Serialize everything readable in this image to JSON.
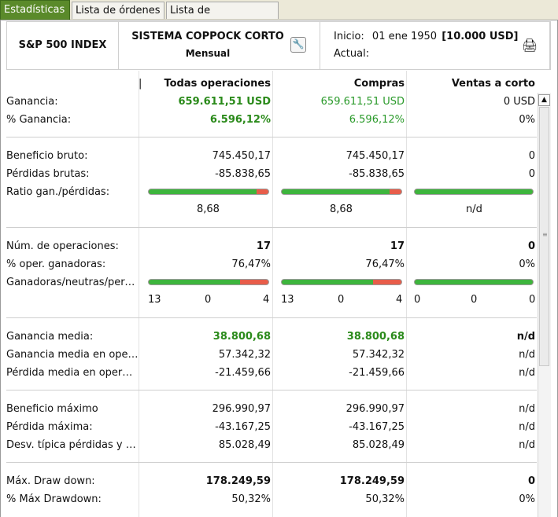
{
  "tabs": [
    {
      "label": "Estadísticas",
      "active": true
    },
    {
      "label": "Lista de órdenes",
      "active": false
    },
    {
      "label": "Lista de operaciones",
      "active": false
    }
  ],
  "header": {
    "instrument": "S&P 500 INDEX",
    "system_name": "SISTEMA COPPOCK CORTO",
    "period": "Mensual",
    "start_label": "Inicio:",
    "start_date": "01 ene 1950",
    "capital": "[10.000 USD]",
    "current_label": "Actual:",
    "icons": {
      "settings": "wrench-icon",
      "print": "printer-icon"
    }
  },
  "columns": {
    "all": "Todas operaciones",
    "buys": "Compras",
    "shorts": "Ventas a corto"
  },
  "colors": {
    "accent": "#5a8a2a",
    "positive": "#2a9a2a",
    "bar_win": "#3db53d",
    "bar_loss": "#e85d4a"
  },
  "rows": {
    "ganancia": {
      "label": "Ganancia:",
      "all": "659.611,51 USD",
      "buys": "659.611,51 USD",
      "shorts": "0 USD"
    },
    "pct_ganancia": {
      "label": "% Ganancia:",
      "all": "6.596,12%",
      "buys": "6.596,12%",
      "shorts": "0%"
    },
    "beneficio_bruto": {
      "label": "Beneficio bruto:",
      "all": "745.450,17",
      "buys": "745.450,17",
      "shorts": "0"
    },
    "perdidas_brutas": {
      "label": "Pérdidas brutas:",
      "all": "-85.838,65",
      "buys": "-85.838,65",
      "shorts": "0"
    },
    "ratio": {
      "label": "Ratio gan./pérdidas:",
      "all": "8,68",
      "buys": "8,68",
      "shorts": "n/d",
      "fill_all": 0.9,
      "fill_buys": 0.9,
      "fill_shorts": 1.0
    },
    "num_ops": {
      "label": "Núm. de operaciones:",
      "all": "17",
      "buys": "17",
      "shorts": "0"
    },
    "pct_ganadoras": {
      "label": "% oper. ganadoras:",
      "all": "76,47%",
      "buys": "76,47%",
      "shorts": "0%"
    },
    "gnp": {
      "label": "Ganadoras/neutras/perdedoras:",
      "fill_all": 0.7647,
      "fill_buys": 0.7647,
      "fill_shorts": 1.0,
      "all": [
        "13",
        "0",
        "4"
      ],
      "buys": [
        "13",
        "0",
        "4"
      ],
      "shorts": [
        "0",
        "0",
        "0"
      ]
    },
    "ganancia_media": {
      "label": "Ganancia media:",
      "all": "38.800,68",
      "buys": "38.800,68",
      "shorts": "n/d"
    },
    "ganancia_media_gan": {
      "label": "Ganancia media en operaciones ganadoras:",
      "all": "57.342,32",
      "buys": "57.342,32",
      "shorts": "n/d"
    },
    "perdida_media": {
      "label": "Pérdida media en operaciones perdedoras:",
      "all": "-21.459,66",
      "buys": "-21.459,66",
      "shorts": "n/d"
    },
    "beneficio_max": {
      "label": "Beneficio máximo",
      "all": "296.990,97",
      "buys": "296.990,97",
      "shorts": "n/d"
    },
    "perdida_max": {
      "label": "Pérdida máxima:",
      "all": "-43.167,25",
      "buys": "-43.167,25",
      "shorts": "n/d"
    },
    "desv": {
      "label": "Desv. típica pérdidas y ganancias:",
      "all": "85.028,49",
      "buys": "85.028,49",
      "shorts": "n/d"
    },
    "max_dd": {
      "label": "Máx. Draw down:",
      "all": "178.249,59",
      "buys": "178.249,59",
      "shorts": "0"
    },
    "pct_max_dd": {
      "label": "% Máx Drawdown:",
      "all": "50,32%",
      "buys": "50,32%",
      "shorts": "0%"
    }
  }
}
